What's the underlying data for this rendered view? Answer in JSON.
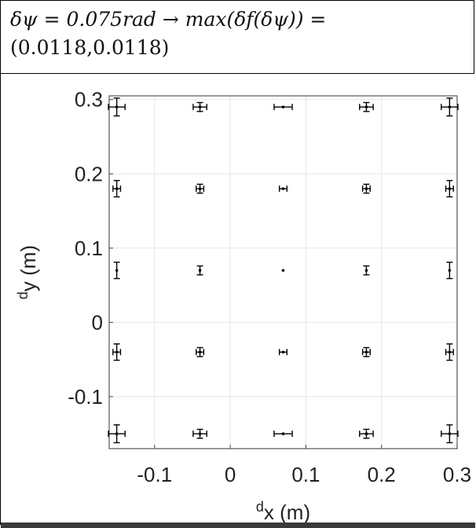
{
  "header": {
    "line1": "δψ = 0.075rad → max(δf(δψ)) =",
    "line2": "(0.0118,0.0118)"
  },
  "chart_data": {
    "type": "scatter",
    "title": "",
    "xlabel": "dx (m)",
    "ylabel": "dy (m)",
    "xlabel_parts": {
      "sup": "d",
      "sub": "x",
      "unit": " (m)"
    },
    "ylabel_parts": {
      "sup": "d",
      "sub": "y",
      "unit": " (m)"
    },
    "xlim": [
      -0.16,
      0.3
    ],
    "ylim": [
      -0.17,
      0.305
    ],
    "xticks": [
      -0.1,
      0,
      0.1,
      0.2,
      0.3
    ],
    "yticks": [
      -0.1,
      0,
      0.1,
      0.2,
      0.3
    ],
    "xtick_labels": [
      "-0.1",
      "0",
      "0.1",
      "0.2",
      "0.3"
    ],
    "ytick_labels": [
      "-0.1",
      "0",
      "0.1",
      "0.2",
      "0.3"
    ],
    "grid": true,
    "color": "#000000",
    "points": [
      {
        "x": -0.15,
        "y": 0.29,
        "ex": 0.011,
        "ey": 0.012
      },
      {
        "x": -0.04,
        "y": 0.29,
        "ex": 0.009,
        "ey": 0.006
      },
      {
        "x": 0.07,
        "y": 0.29,
        "ex": 0.012,
        "ey": 0.0
      },
      {
        "x": 0.18,
        "y": 0.29,
        "ex": 0.009,
        "ey": 0.006
      },
      {
        "x": 0.29,
        "y": 0.29,
        "ex": 0.011,
        "ey": 0.012
      },
      {
        "x": -0.15,
        "y": 0.18,
        "ex": 0.005,
        "ey": 0.011
      },
      {
        "x": -0.04,
        "y": 0.18,
        "ex": 0.005,
        "ey": 0.006
      },
      {
        "x": 0.07,
        "y": 0.18,
        "ex": 0.005,
        "ey": 0.0
      },
      {
        "x": 0.18,
        "y": 0.18,
        "ex": 0.005,
        "ey": 0.006
      },
      {
        "x": 0.29,
        "y": 0.18,
        "ex": 0.005,
        "ey": 0.011
      },
      {
        "x": -0.15,
        "y": 0.07,
        "ex": 0.0,
        "ey": 0.011
      },
      {
        "x": -0.04,
        "y": 0.07,
        "ex": 0.0,
        "ey": 0.006
      },
      {
        "x": 0.07,
        "y": 0.07,
        "ex": 0.0,
        "ey": 0.0
      },
      {
        "x": 0.18,
        "y": 0.07,
        "ex": 0.0,
        "ey": 0.006
      },
      {
        "x": 0.29,
        "y": 0.07,
        "ex": 0.0,
        "ey": 0.011
      },
      {
        "x": -0.15,
        "y": -0.04,
        "ex": 0.005,
        "ey": 0.011
      },
      {
        "x": -0.04,
        "y": -0.04,
        "ex": 0.005,
        "ey": 0.006
      },
      {
        "x": 0.07,
        "y": -0.04,
        "ex": 0.005,
        "ey": 0.0
      },
      {
        "x": 0.18,
        "y": -0.04,
        "ex": 0.005,
        "ey": 0.006
      },
      {
        "x": 0.29,
        "y": -0.04,
        "ex": 0.005,
        "ey": 0.011
      },
      {
        "x": -0.15,
        "y": -0.15,
        "ex": 0.011,
        "ey": 0.012
      },
      {
        "x": -0.04,
        "y": -0.15,
        "ex": 0.009,
        "ey": 0.006
      },
      {
        "x": 0.07,
        "y": -0.15,
        "ex": 0.012,
        "ey": 0.0
      },
      {
        "x": 0.18,
        "y": -0.15,
        "ex": 0.009,
        "ey": 0.006
      },
      {
        "x": 0.29,
        "y": -0.15,
        "ex": 0.011,
        "ey": 0.012
      }
    ]
  }
}
